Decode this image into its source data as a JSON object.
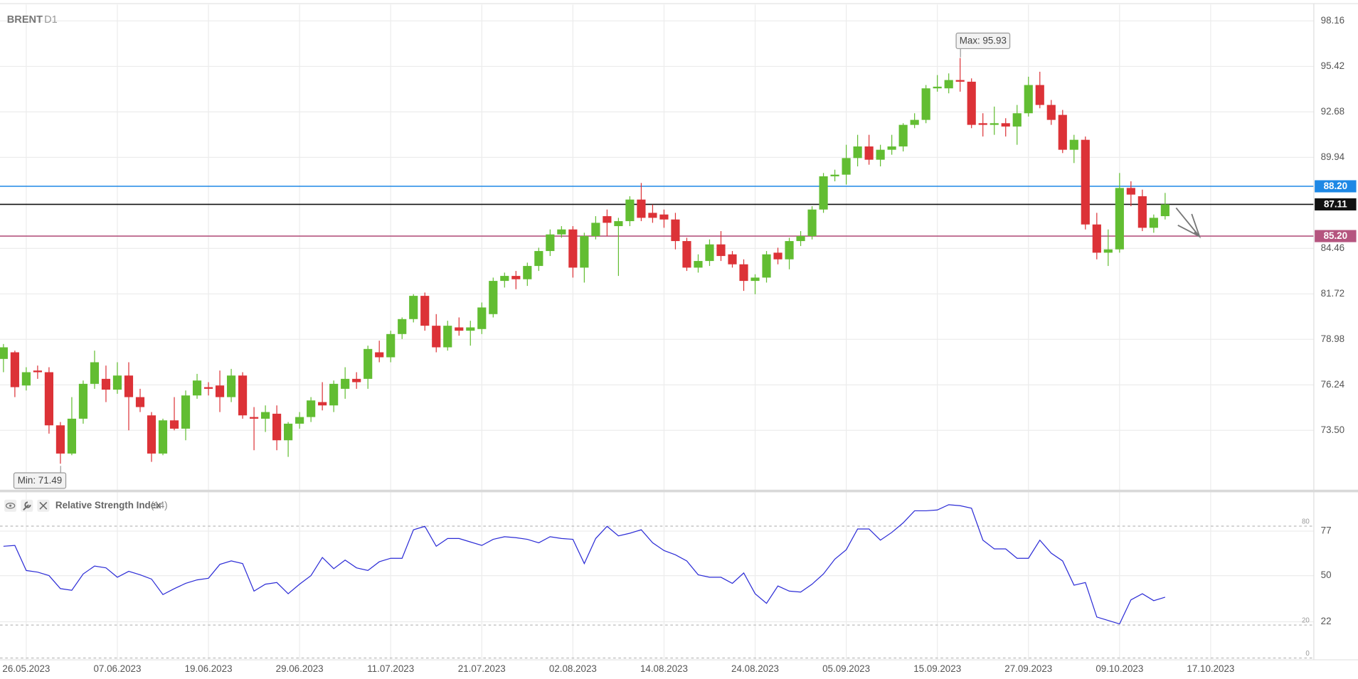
{
  "chart_data": {
    "type": "candlestick",
    "title": "BRENT",
    "timeframe": "D1",
    "categories": [
      null,
      null,
      "26.05.2023",
      null,
      null,
      null,
      null,
      null,
      null,
      null,
      "07.06.2023",
      null,
      null,
      null,
      null,
      null,
      null,
      null,
      "19.06.2023",
      null,
      null,
      null,
      null,
      null,
      null,
      null,
      "29.06.2023",
      null,
      null,
      null,
      null,
      null,
      null,
      null,
      "11.07.2023",
      null,
      null,
      null,
      null,
      null,
      null,
      null,
      "21.07.2023",
      null,
      null,
      null,
      null,
      null,
      null,
      null,
      "02.08.2023",
      null,
      null,
      null,
      null,
      null,
      null,
      null,
      "14.08.2023",
      null,
      null,
      null,
      null,
      null,
      null,
      null,
      "24.08.2023",
      null,
      null,
      null,
      null,
      null,
      null,
      null,
      "05.09.2023",
      null,
      null,
      null,
      null,
      null,
      null,
      null,
      "15.09.2023",
      null,
      null,
      null,
      null,
      null,
      null,
      null,
      "27.09.2023",
      null,
      null,
      null,
      null,
      null,
      null,
      null,
      "09.10.2023",
      null,
      null,
      null,
      null,
      null,
      null,
      null,
      "17.10.2023",
      null,
      null,
      null,
      null,
      null,
      null,
      null,
      null,
      null
    ],
    "open": [
      77.8,
      78.2,
      76.2,
      77.1,
      77.0,
      73.8,
      72.1,
      74.2,
      76.3,
      76.6,
      75.95,
      76.8,
      75.5,
      74.4,
      72.1,
      74.1,
      73.6,
      75.6,
      76.1,
      76.2,
      75.5,
      76.8,
      74.3,
      74.2,
      74.5,
      72.9,
      73.9,
      74.3,
      75.2,
      75.0,
      76.0,
      76.6,
      76.6,
      78.2,
      77.9,
      79.3,
      80.2,
      81.6,
      79.8,
      78.5,
      79.7,
      79.5,
      79.6,
      80.5,
      82.5,
      82.8,
      82.6,
      83.4,
      84.3,
      85.3,
      85.6,
      83.3,
      85.2,
      86.4,
      85.8,
      86.1,
      87.4,
      86.6,
      86.5,
      86.2,
      84.9,
      83.3,
      83.7,
      84.7,
      84.1,
      83.5,
      82.5,
      82.7,
      84.2,
      83.8,
      84.9,
      85.2,
      86.8,
      88.8,
      88.9,
      89.9,
      90.6,
      89.8,
      90.4,
      90.6,
      91.9,
      92.2,
      94.1,
      94.1,
      94.6,
      94.5,
      92.0,
      91.9,
      92.0,
      91.8,
      92.6,
      94.3,
      93.1,
      92.5,
      90.4,
      91.0,
      85.9,
      84.2,
      84.4,
      88.1,
      87.6,
      85.7,
      86.4,
      null,
      null,
      null,
      null,
      null,
      null,
      null,
      null,
      null,
      null,
      null,
      null,
      null
    ],
    "high": [
      78.7,
      78.3,
      77.3,
      77.4,
      77.3,
      74.0,
      75.5,
      76.5,
      78.3,
      77.4,
      77.6,
      77.6,
      76.0,
      74.6,
      74.2,
      75.5,
      75.9,
      76.9,
      76.4,
      77.1,
      77.2,
      77.0,
      74.9,
      75.0,
      75.0,
      74.0,
      74.6,
      75.5,
      76.4,
      76.5,
      77.3,
      77.0,
      78.6,
      78.9,
      79.5,
      80.3,
      81.7,
      81.8,
      80.5,
      80.1,
      80.3,
      80.1,
      81.2,
      82.7,
      83.0,
      83.1,
      83.6,
      84.5,
      85.6,
      85.8,
      85.8,
      85.4,
      86.4,
      86.8,
      86.3,
      87.6,
      88.4,
      87.1,
      86.8,
      86.6,
      85.1,
      84.1,
      85.0,
      85.5,
      84.3,
      83.8,
      82.9,
      84.3,
      84.5,
      85.1,
      85.5,
      87.0,
      89.0,
      89.2,
      90.7,
      91.3,
      91.3,
      90.7,
      91.3,
      92.0,
      92.6,
      94.3,
      94.9,
      95.0,
      95.93,
      94.7,
      92.6,
      93.0,
      92.3,
      93.1,
      94.8,
      95.1,
      93.4,
      92.8,
      91.3,
      91.2,
      86.6,
      85.6,
      89.0,
      88.5,
      88.0,
      86.5,
      87.8,
      null,
      null,
      null,
      null,
      null,
      null,
      null,
      null,
      null,
      null,
      null,
      null,
      null
    ],
    "low": [
      77.0,
      75.5,
      75.9,
      76.6,
      73.3,
      71.49,
      72.0,
      73.9,
      76.0,
      75.2,
      75.7,
      73.5,
      74.6,
      71.6,
      72.0,
      73.5,
      72.9,
      75.4,
      75.6,
      74.6,
      75.2,
      74.2,
      72.3,
      73.4,
      72.3,
      71.9,
      73.6,
      74.0,
      74.7,
      74.6,
      75.4,
      76.0,
      76.0,
      77.6,
      77.6,
      79.0,
      80.0,
      79.5,
      78.2,
      78.3,
      79.2,
      78.6,
      79.3,
      80.3,
      82.1,
      82.0,
      82.2,
      83.1,
      84.0,
      85.1,
      82.7,
      82.4,
      85.0,
      85.2,
      82.8,
      85.8,
      86.1,
      86.0,
      85.7,
      84.4,
      83.1,
      83.0,
      83.4,
      83.7,
      83.3,
      81.9,
      81.7,
      82.4,
      83.5,
      83.2,
      84.6,
      85.0,
      86.6,
      88.5,
      88.3,
      89.4,
      89.5,
      89.4,
      90.1,
      90.3,
      91.7,
      92.0,
      93.9,
      93.8,
      93.9,
      91.7,
      91.2,
      91.3,
      91.2,
      90.7,
      92.4,
      92.9,
      91.9,
      90.2,
      89.6,
      85.6,
      83.8,
      83.4,
      84.2,
      87.0,
      85.5,
      85.4,
      86.2,
      null,
      null,
      null,
      null,
      null,
      null,
      null,
      null,
      null,
      null,
      null,
      null,
      null
    ],
    "close": [
      78.5,
      76.1,
      77.0,
      77.0,
      73.8,
      72.1,
      74.2,
      76.3,
      77.6,
      75.95,
      76.8,
      75.5,
      74.9,
      72.1,
      74.1,
      73.6,
      75.6,
      76.5,
      76.0,
      75.5,
      76.8,
      74.4,
      74.2,
      74.6,
      72.9,
      73.9,
      74.3,
      75.3,
      75.0,
      76.3,
      76.6,
      76.4,
      78.4,
      77.9,
      79.3,
      80.2,
      81.6,
      79.8,
      78.5,
      79.8,
      79.5,
      79.7,
      80.9,
      82.5,
      82.8,
      82.6,
      83.4,
      84.3,
      85.3,
      85.6,
      83.3,
      85.2,
      86.0,
      86.0,
      86.1,
      87.4,
      86.3,
      86.3,
      86.2,
      84.9,
      83.3,
      83.7,
      84.7,
      84.0,
      83.5,
      82.5,
      82.7,
      84.1,
      83.8,
      84.9,
      85.2,
      86.8,
      88.8,
      88.9,
      89.9,
      90.6,
      89.8,
      90.4,
      90.6,
      91.9,
      92.2,
      94.1,
      94.2,
      94.6,
      94.5,
      91.9,
      91.9,
      92.0,
      91.8,
      92.6,
      94.3,
      93.1,
      92.2,
      90.4,
      91.0,
      85.9,
      84.2,
      84.4,
      88.1,
      87.7,
      85.7,
      86.3,
      87.11,
      null,
      null,
      null,
      null,
      null,
      null,
      null,
      null,
      null,
      null,
      null,
      null,
      null
    ],
    "up_color": "#62bd32",
    "down_color": "#dc3237",
    "ylim": [
      69.95,
      99.15
    ],
    "yticks": [
      98.16,
      95.42,
      92.68,
      89.94,
      84.46,
      81.72,
      78.98,
      76.24,
      {
        "value": 73.5,
        "label": "73.50"
      }
    ],
    "grid": true,
    "hlines": [
      {
        "value": 88.2,
        "label": "88.20",
        "color": "#1e88e5"
      },
      {
        "value": 87.11,
        "label": "87.11",
        "color": "#111111"
      },
      {
        "value": 85.2,
        "label": "85.20",
        "color": "#b5557f"
      }
    ],
    "annotations": {
      "max": "Max: 95.93",
      "min": "Min: 71.49"
    },
    "rsi": {
      "type": "line",
      "title": "Relative Strength Index",
      "period": "(14)",
      "color": "#2b2bd6",
      "values": [
        67.8,
        68.3,
        53.1,
        52.1,
        50.0,
        42.1,
        41.1,
        51.0,
        55.8,
        54.7,
        49.0,
        52.6,
        50.5,
        47.9,
        38.5,
        42.1,
        45.3,
        47.4,
        48.4,
        56.8,
        58.9,
        57.3,
        40.6,
        44.8,
        45.8,
        39.0,
        44.8,
        50.0,
        61.0,
        54.2,
        59.4,
        54.7,
        53.1,
        58.4,
        60.5,
        60.5,
        77.8,
        79.9,
        67.8,
        72.5,
        72.5,
        70.4,
        68.3,
        72.0,
        73.6,
        73.0,
        72.0,
        69.9,
        73.6,
        72.5,
        72.0,
        57.3,
        72.5,
        79.9,
        74.1,
        75.7,
        77.8,
        69.9,
        65.2,
        62.6,
        58.9,
        50.5,
        49.0,
        49.0,
        45.3,
        51.6,
        39.0,
        33.2,
        43.7,
        40.6,
        40.0,
        44.8,
        51.0,
        60.0,
        65.7,
        78.3,
        78.3,
        71.5,
        76.2,
        82.0,
        89.3,
        89.3,
        89.8,
        93.0,
        92.4,
        90.9,
        71.5,
        66.2,
        66.2,
        60.5,
        60.5,
        71.5,
        63.6,
        58.9,
        44.2,
        45.8,
        24.9,
        22.8,
        20.7,
        35.3,
        39.0,
        34.8,
        36.9,
        null,
        null,
        null,
        null,
        null,
        null,
        null,
        null,
        null,
        null,
        null,
        null,
        null
      ],
      "ylim": [
        0,
        98.7
      ],
      "yticks": [
        22,
        50,
        77
      ],
      "levels": [
        0,
        20,
        80
      ]
    }
  }
}
